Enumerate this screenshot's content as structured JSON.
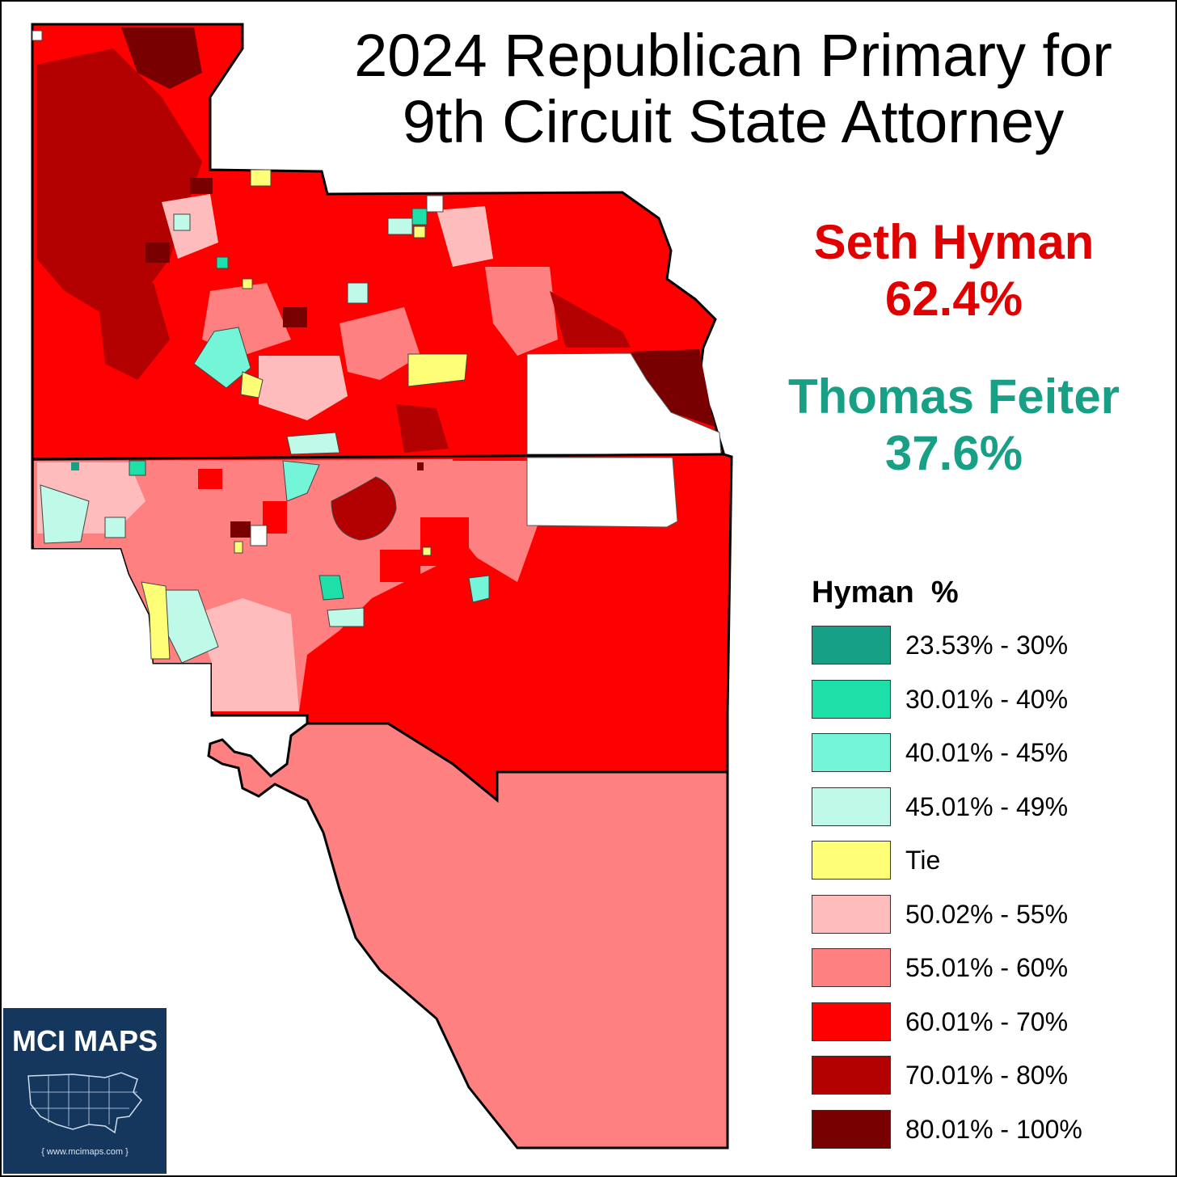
{
  "title": {
    "line1": "2024 Republican Primary for",
    "line2": "9th Circuit State Attorney"
  },
  "candidates": [
    {
      "name": "Seth Hyman",
      "pct": "62.4%",
      "color": "#e00000"
    },
    {
      "name": "Thomas Feiter",
      "pct": "37.6%",
      "color": "#17a085"
    }
  ],
  "legend": {
    "title": "Hyman  %",
    "items": [
      {
        "label": "23.53% - 30%",
        "color": "#16a085"
      },
      {
        "label": "30.01% - 40%",
        "color": "#1de0a8"
      },
      {
        "label": "40.01% - 45%",
        "color": "#74f5d8"
      },
      {
        "label": "45.01% - 49%",
        "color": "#bff9e8"
      },
      {
        "label": "Tie",
        "color": "#ffff77"
      },
      {
        "label": "50.02% - 55%",
        "color": "#ffbcbc"
      },
      {
        "label": "55.01% - 60%",
        "color": "#ff8080"
      },
      {
        "label": "60.01% - 70%",
        "color": "#ff0000"
      },
      {
        "label": "70.01% - 80%",
        "color": "#b30000"
      },
      {
        "label": "80.01% - 100%",
        "color": "#780000"
      }
    ]
  },
  "logo": {
    "name": "MCI MAPS",
    "url": "{ www.mcimaps.com }",
    "background": "#15375e"
  }
}
